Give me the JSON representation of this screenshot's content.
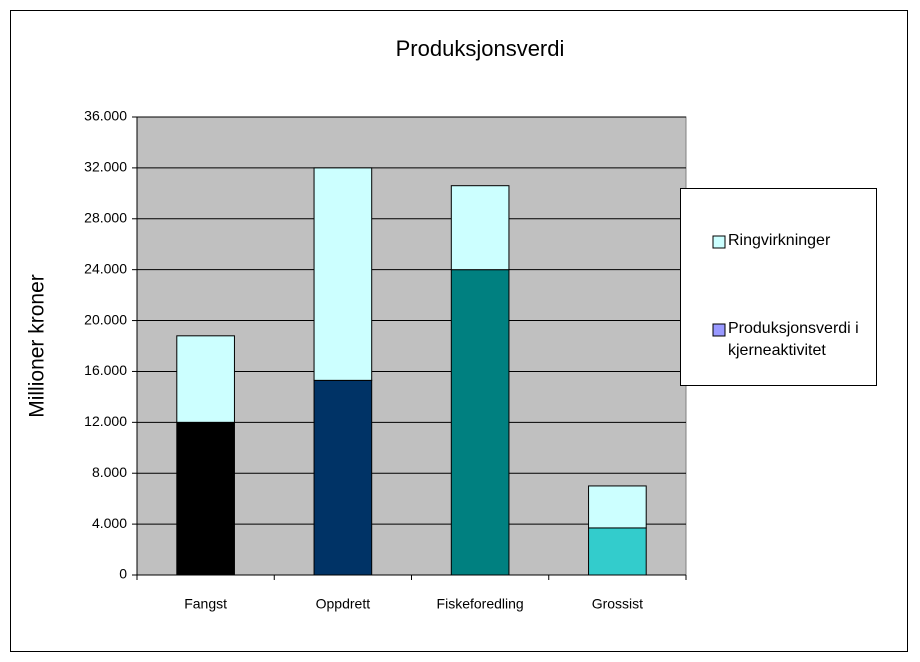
{
  "chart_data": {
    "type": "stacked_bar",
    "title": "Produksjonsverdi",
    "y_label": "Millioner kroner",
    "categories": [
      "Fangst",
      "Oppdrett",
      "Fiskeforedling",
      "Grossist"
    ],
    "series": [
      {
        "name": "Produksjonsverdi i kjerneaktivitet",
        "color": "#9999ff",
        "colors": [
          "#000000",
          "#003366",
          "#008080",
          "#33cccc"
        ],
        "values": [
          12000,
          15300,
          24000,
          3700
        ]
      },
      {
        "name": "Ringvirkninger",
        "color": "#ccffff",
        "values": [
          6800,
          16700,
          6600,
          3300
        ]
      }
    ],
    "ylim": [
      0,
      36000
    ],
    "yticks": [
      0,
      {
        "value": 4000,
        "label": "4.000"
      },
      {
        "value": 8000,
        "label": "8.000"
      },
      {
        "value": 12000,
        "label": "12.000"
      },
      {
        "value": 16000,
        "label": "16.000"
      },
      {
        "value": 20000,
        "label": "20.000"
      },
      {
        "value": 24000,
        "label": "24.000"
      },
      {
        "value": 28000,
        "label": "28.000"
      },
      {
        "value": 32000,
        "label": "32.000"
      },
      {
        "value": 36000,
        "label": "36.000"
      }
    ],
    "grid": true,
    "plot_background": "#c0c0c0",
    "legend": "right"
  }
}
